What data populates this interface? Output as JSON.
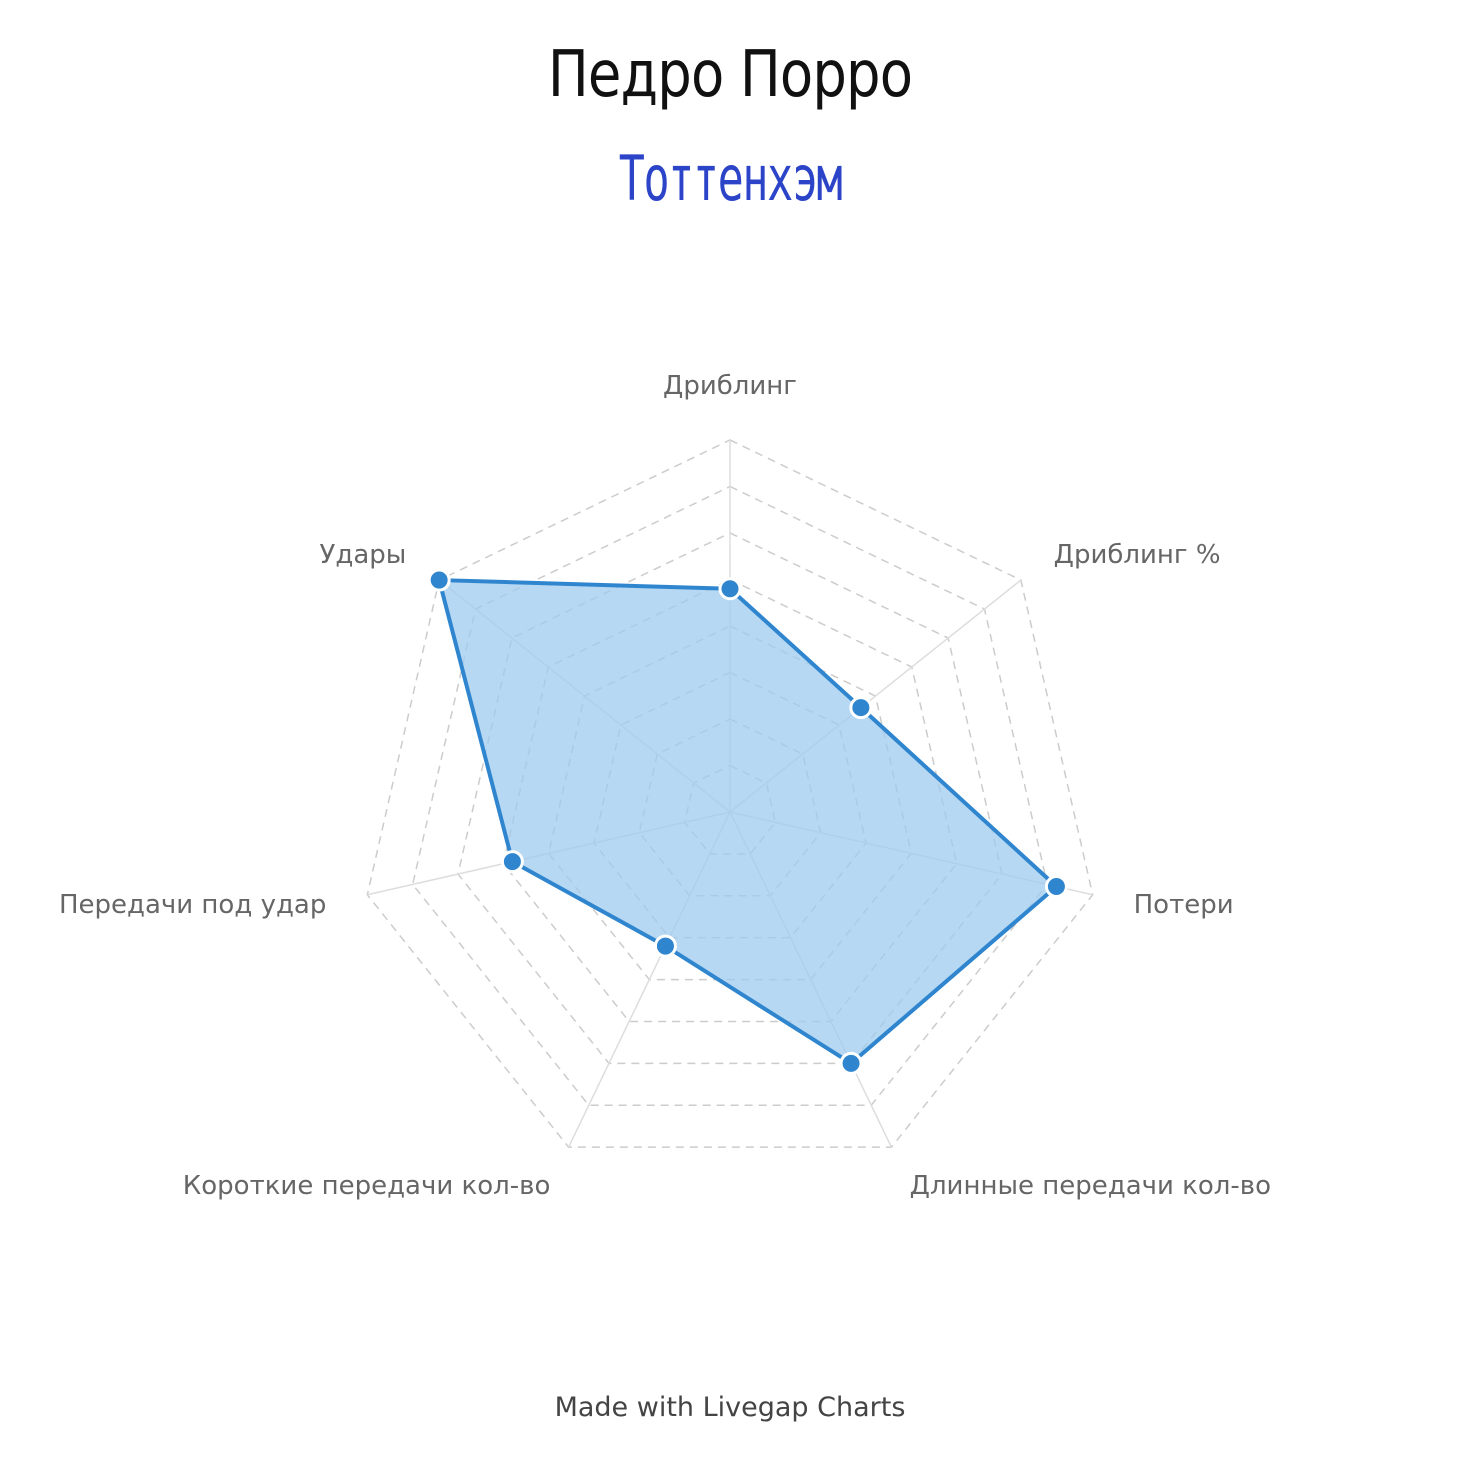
{
  "header": {
    "title": "Педро Порро",
    "subtitle": "Тоттенхэм"
  },
  "chart_data": {
    "type": "radar",
    "axes": [
      "Дриблинг",
      "Дриблинг %",
      "Потери",
      "Длинные передачи кол-во",
      "Короткие передачи кол-во",
      "Передачи под удар",
      "Удары"
    ],
    "series": [
      {
        "values": [
          60,
          45,
          90,
          75,
          40,
          60,
          100
        ]
      }
    ],
    "range": [
      0,
      100
    ],
    "rings": 8,
    "grid": "dashed",
    "colors": {
      "line": "#2f86cf",
      "fill": "#9fcbef",
      "grid": "#cccccc"
    }
  },
  "footer": {
    "credit": "Made with Livegap Charts"
  }
}
